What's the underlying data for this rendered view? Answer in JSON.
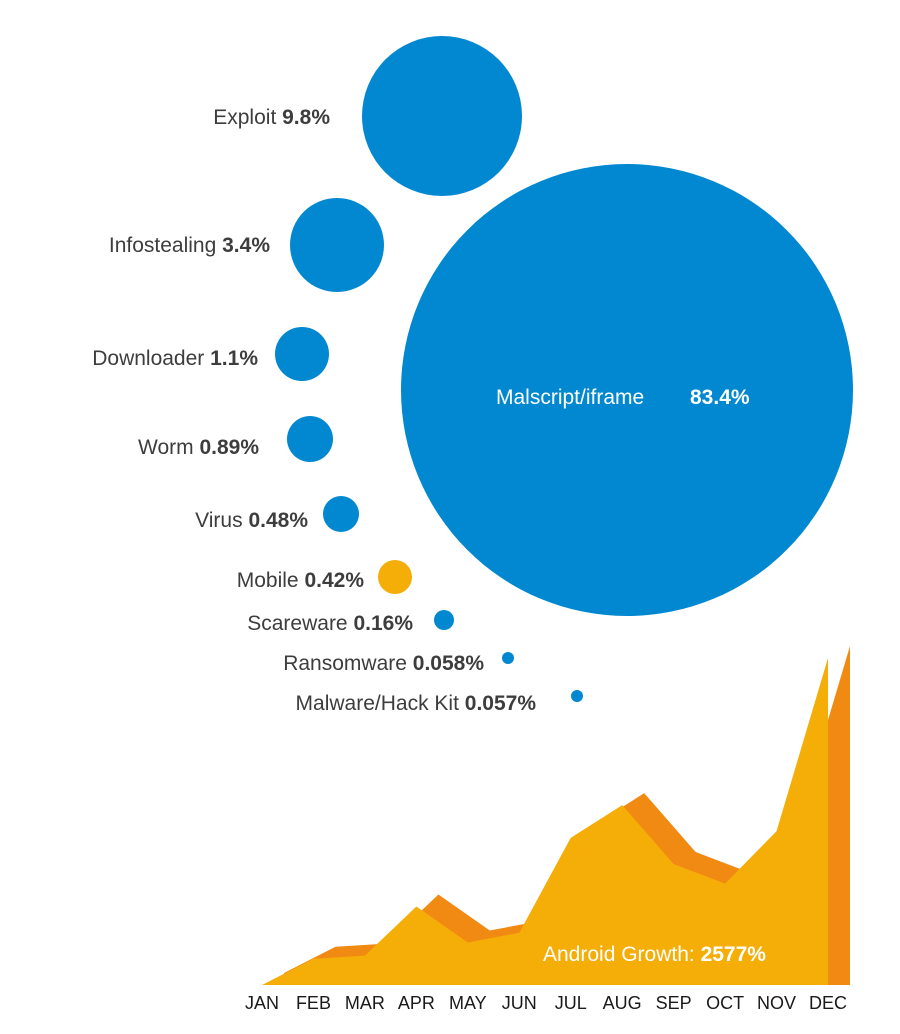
{
  "chart_data": [
    {
      "type": "bubble",
      "unit": "%",
      "items": [
        {
          "name": "Exploit",
          "value": 9.8,
          "label": "9.8%",
          "color": "#0288d1"
        },
        {
          "name": "Infostealing",
          "value": 3.4,
          "label": "3.4%",
          "color": "#0288d1"
        },
        {
          "name": "Downloader",
          "value": 1.1,
          "label": "1.1%",
          "color": "#0288d1"
        },
        {
          "name": "Worm",
          "value": 0.89,
          "label": "0.89%",
          "color": "#0288d1"
        },
        {
          "name": "Virus",
          "value": 0.48,
          "label": "0.48%",
          "color": "#0288d1"
        },
        {
          "name": "Mobile",
          "value": 0.42,
          "label": "0.42%",
          "color": "#f5ad07"
        },
        {
          "name": "Scareware",
          "value": 0.16,
          "label": "0.16%",
          "color": "#0288d1"
        },
        {
          "name": "Ransomware",
          "value": 0.058,
          "label": "0.058%",
          "color": "#0288d1"
        },
        {
          "name": "Malware/Hack Kit",
          "value": 0.057,
          "label": "0.057%",
          "color": "#0288d1"
        },
        {
          "name": "Malscript/iframe",
          "value": 83.4,
          "label": "83.4%",
          "color": "#0288d1"
        }
      ]
    },
    {
      "type": "area",
      "title": "Android Growth:",
      "title_value": "2577%",
      "categories": [
        "JAN",
        "FEB",
        "MAR",
        "APR",
        "MAY",
        "JUN",
        "JUL",
        "AUG",
        "SEP",
        "OCT",
        "NOV",
        "DEC"
      ],
      "values": [
        0,
        8,
        9,
        24,
        13,
        16,
        45,
        55,
        37,
        31,
        47,
        100
      ],
      "fill_color": "#f5ad07",
      "edge_color": "#f08a13"
    }
  ]
}
